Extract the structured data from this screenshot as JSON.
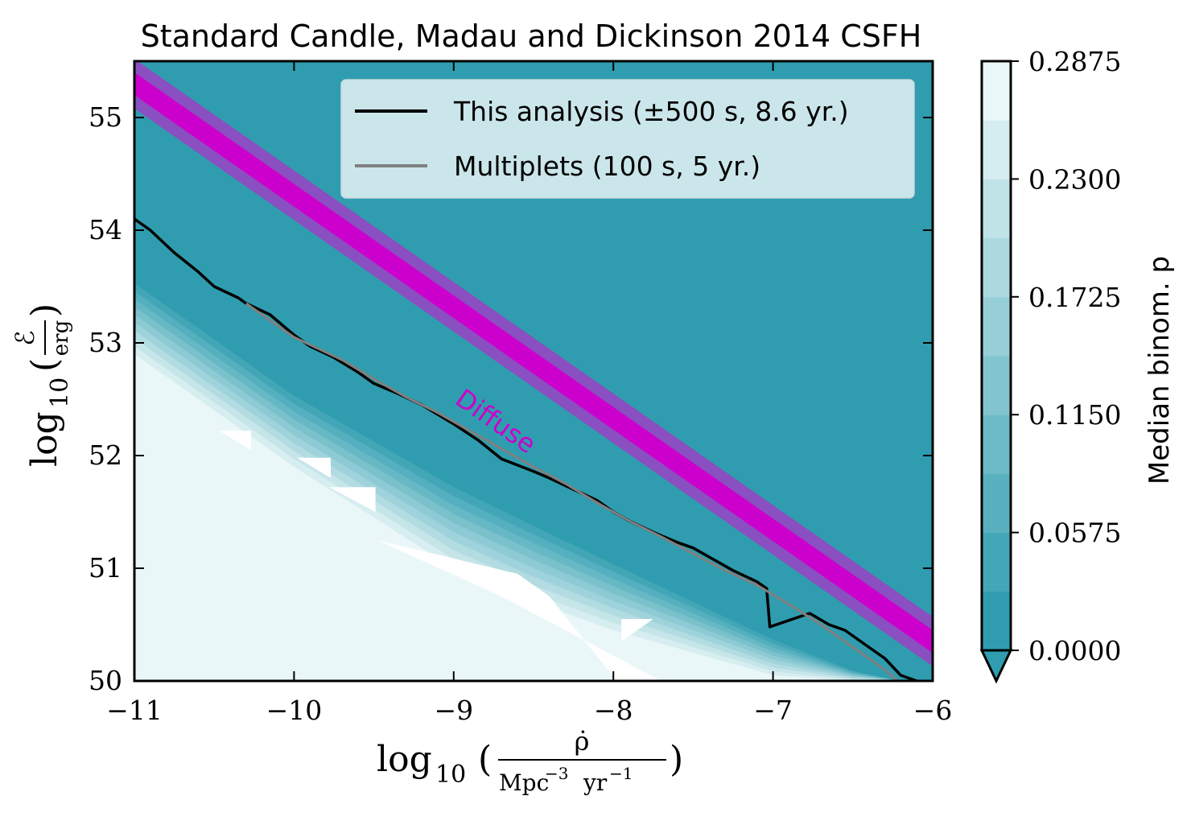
{
  "chart_data": {
    "type": "contour",
    "title": "Standard Candle, Madau and Dickinson 2014 CSFH",
    "xlabel": {
      "prefix": "log",
      "sub": "10",
      "numerator": "ρ̇",
      "denominator_unit1": "Mpc",
      "denominator_exp1": "−3",
      "denominator_unit2": "yr",
      "denominator_exp2": "−1"
    },
    "ylabel": {
      "prefix": "log",
      "sub": "10",
      "numerator": "ℰ",
      "denominator": "erg"
    },
    "xlim": [
      -11,
      -6
    ],
    "ylim": [
      50,
      55.5
    ],
    "x_ticks": [
      -11,
      -10,
      -9,
      -8,
      -7,
      -6
    ],
    "x_tick_labels": [
      "−11",
      "−10",
      "−9",
      "−8",
      "−7",
      "−6"
    ],
    "y_ticks": [
      50,
      51,
      52,
      53,
      54,
      55
    ],
    "y_tick_labels": [
      "50",
      "51",
      "52",
      "53",
      "54",
      "55"
    ],
    "colorbar": {
      "label": "Median binom. p",
      "range": [
        0.0,
        0.2875
      ],
      "ticks": [
        0.0,
        0.0575,
        0.115,
        0.1725,
        0.23,
        0.2875
      ],
      "tick_labels": [
        "0.0000",
        "0.0575",
        "0.1150",
        "0.1725",
        "0.2300",
        "0.2875"
      ],
      "levels": 10,
      "color_low": "#2f9daf",
      "color_high": "#eaf7f8",
      "extend": "min"
    },
    "contour_field": {
      "description_free": true,
      "boundary_x": [
        -11,
        -10.5,
        -10,
        -9.5,
        -9,
        -8.5,
        -8,
        -7.5,
        -7,
        -6.5,
        -6.2
      ],
      "boundary_y_p_low": [
        53.6,
        53.1,
        52.6,
        52.2,
        51.8,
        51.45,
        51.1,
        50.75,
        50.4,
        50.1,
        50.0
      ],
      "boundary_y_p_high": [
        52.9,
        52.4,
        51.9,
        51.45,
        51.0,
        50.7,
        50.45,
        50.25,
        50.05,
        50.0,
        50.0
      ]
    },
    "series": [
      {
        "name": "This analysis (±500 s, 8.6 yr.)",
        "color": "#000000",
        "x": [
          -11.0,
          -10.9,
          -10.75,
          -10.6,
          -10.5,
          -10.35,
          -10.3,
          -10.15,
          -10.0,
          -9.9,
          -9.75,
          -9.6,
          -9.5,
          -9.35,
          -9.2,
          -9.0,
          -8.85,
          -8.7,
          -8.5,
          -8.4,
          -8.25,
          -8.1,
          -8.0,
          -7.9,
          -7.75,
          -7.6,
          -7.5,
          -7.4,
          -7.25,
          -7.1,
          -7.04,
          -7.02,
          -6.77,
          -6.65,
          -6.55,
          -6.4,
          -6.3,
          -6.2,
          -6.1
        ],
        "y": [
          54.1,
          54.0,
          53.8,
          53.63,
          53.5,
          53.4,
          53.35,
          53.25,
          53.07,
          52.97,
          52.87,
          52.74,
          52.64,
          52.55,
          52.45,
          52.28,
          52.14,
          51.97,
          51.86,
          51.8,
          51.7,
          51.6,
          51.5,
          51.42,
          51.32,
          51.23,
          51.18,
          51.1,
          50.98,
          50.88,
          50.82,
          50.48,
          50.6,
          50.5,
          50.45,
          50.3,
          50.2,
          50.05,
          50.0
        ]
      },
      {
        "name": "Multiplets (100 s, 5 yr.)",
        "color": "#808080",
        "x": [
          -10.3,
          -10.15,
          -10.0,
          -9.85,
          -9.7,
          -9.5,
          -9.3,
          -9.1,
          -8.9,
          -8.7,
          -8.5,
          -8.3,
          -8.1,
          -7.9,
          -7.7,
          -7.5,
          -7.3,
          -7.1,
          -6.9,
          -6.7,
          -6.5,
          -6.3,
          -6.22
        ],
        "y": [
          53.35,
          53.2,
          53.05,
          52.95,
          52.85,
          52.68,
          52.52,
          52.38,
          52.22,
          52.06,
          51.9,
          51.75,
          51.58,
          51.42,
          51.28,
          51.13,
          50.98,
          50.85,
          50.68,
          50.5,
          50.3,
          50.1,
          50.0
        ]
      }
    ],
    "diffuse_band": {
      "label": "Diffuse",
      "color_core": "#cc00cc",
      "color_outer": "#8a4fc0",
      "x": [
        -11,
        -6
      ],
      "y_center": [
        55.3,
        50.35
      ],
      "core_half_width": 0.1,
      "outer_half_width": 0.22
    },
    "legend": {
      "position": "upper-right",
      "entries": [
        "This analysis (±500 s, 8.6 yr.)",
        "Multiplets (100 s, 5 yr.)"
      ]
    }
  }
}
